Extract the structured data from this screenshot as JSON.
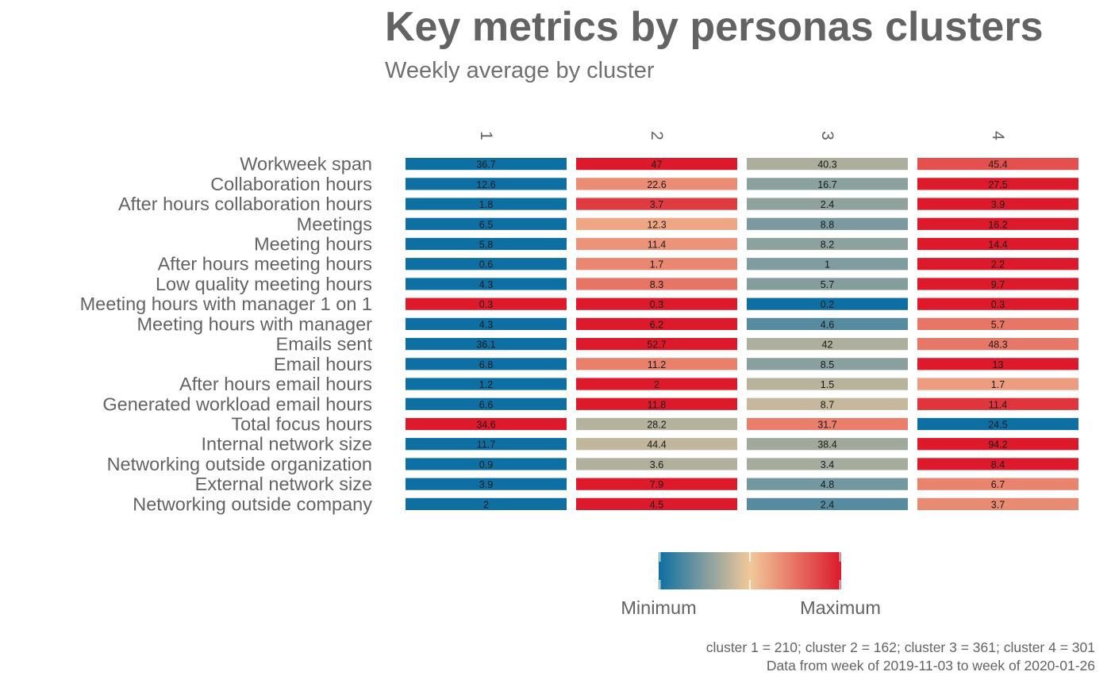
{
  "chart_data": {
    "type": "heatmap",
    "title": "Key metrics by personas clusters",
    "subtitle": "Weekly average by cluster",
    "columns": [
      "1",
      "2",
      "3",
      "4"
    ],
    "rows": [
      {
        "name": "Workweek span",
        "values": [
          36.7,
          47,
          40.3,
          45.4
        ],
        "labels": [
          "36.7",
          "47",
          "40.3",
          "45.4"
        ]
      },
      {
        "name": "Collaboration hours",
        "values": [
          12.6,
          22.6,
          16.7,
          27.5
        ],
        "labels": [
          "12.6",
          "22.6",
          "16.7",
          "27.5"
        ]
      },
      {
        "name": "After hours collaboration hours",
        "values": [
          1.8,
          3.7,
          2.4,
          3.9
        ],
        "labels": [
          "1.8",
          "3.7",
          "2.4",
          "3.9"
        ]
      },
      {
        "name": "Meetings",
        "values": [
          6.5,
          12.3,
          8.8,
          16.2
        ],
        "labels": [
          "6.5",
          "12.3",
          "8.8",
          "16.2"
        ]
      },
      {
        "name": "Meeting hours",
        "values": [
          5.8,
          11.4,
          8.2,
          14.4
        ],
        "labels": [
          "5.8",
          "11.4",
          "8.2",
          "14.4"
        ]
      },
      {
        "name": "After hours meeting hours",
        "values": [
          0.6,
          1.7,
          1,
          2.2
        ],
        "labels": [
          "0.6",
          "1.7",
          "1",
          "2.2"
        ]
      },
      {
        "name": "Low quality meeting hours",
        "values": [
          4.3,
          8.3,
          5.7,
          9.7
        ],
        "labels": [
          "4.3",
          "8.3",
          "5.7",
          "9.7"
        ]
      },
      {
        "name": "Meeting hours with manager 1 on 1",
        "values": [
          0.3,
          0.3,
          0.2,
          0.3
        ],
        "labels": [
          "0.3",
          "0.3",
          "0.2",
          "0.3"
        ]
      },
      {
        "name": "Meeting hours with manager",
        "values": [
          4.3,
          6.2,
          4.6,
          5.7
        ],
        "labels": [
          "4.3",
          "6.2",
          "4.6",
          "5.7"
        ]
      },
      {
        "name": "Emails sent",
        "values": [
          36.1,
          52.7,
          42,
          48.3
        ],
        "labels": [
          "36.1",
          "52.7",
          "42",
          "48.3"
        ]
      },
      {
        "name": "Email hours",
        "values": [
          6.8,
          11.2,
          8.5,
          13
        ],
        "labels": [
          "6.8",
          "11.2",
          "8.5",
          "13"
        ]
      },
      {
        "name": "After hours email hours",
        "values": [
          1.2,
          2,
          1.5,
          1.7
        ],
        "labels": [
          "1.2",
          "2",
          "1.5",
          "1.7"
        ]
      },
      {
        "name": "Generated workload email hours",
        "values": [
          6.6,
          11.8,
          8.7,
          11.4
        ],
        "labels": [
          "6.6",
          "11.8",
          "8.7",
          "11.4"
        ]
      },
      {
        "name": "Total focus hours",
        "values": [
          34.6,
          28.2,
          31.7,
          24.5
        ],
        "labels": [
          "34.6",
          "28.2",
          "31.7",
          "24.5"
        ]
      },
      {
        "name": "Internal network size",
        "values": [
          11.7,
          44.4,
          38.4,
          94.2
        ],
        "labels": [
          "11.7",
          "44.4",
          "38.4",
          "94.2"
        ]
      },
      {
        "name": "Networking outside organization",
        "values": [
          0.9,
          3.6,
          3.4,
          8.4
        ],
        "labels": [
          "0.9",
          "3.6",
          "3.4",
          "8.4"
        ]
      },
      {
        "name": "External network size",
        "values": [
          3.9,
          7.9,
          4.8,
          6.7
        ],
        "labels": [
          "3.9",
          "7.9",
          "4.8",
          "6.7"
        ]
      },
      {
        "name": "Networking outside company",
        "values": [
          2,
          4.5,
          2.4,
          3.7
        ],
        "labels": [
          "2",
          "4.5",
          "2.4",
          "3.7"
        ]
      }
    ],
    "color_scale": {
      "low": "#0E6FA3",
      "mid": "#F1C99A",
      "high": "#DC1A2C",
      "low_label": "Minimum",
      "high_label": "Maximum"
    },
    "legend_position": "bottom",
    "grid": false
  },
  "caption": {
    "line1": "cluster 1 = 210; cluster 2 = 162; cluster 3 = 361; cluster 4 = 301",
    "line2": "Data from week of 2019-11-03 to week of 2020-01-26"
  }
}
